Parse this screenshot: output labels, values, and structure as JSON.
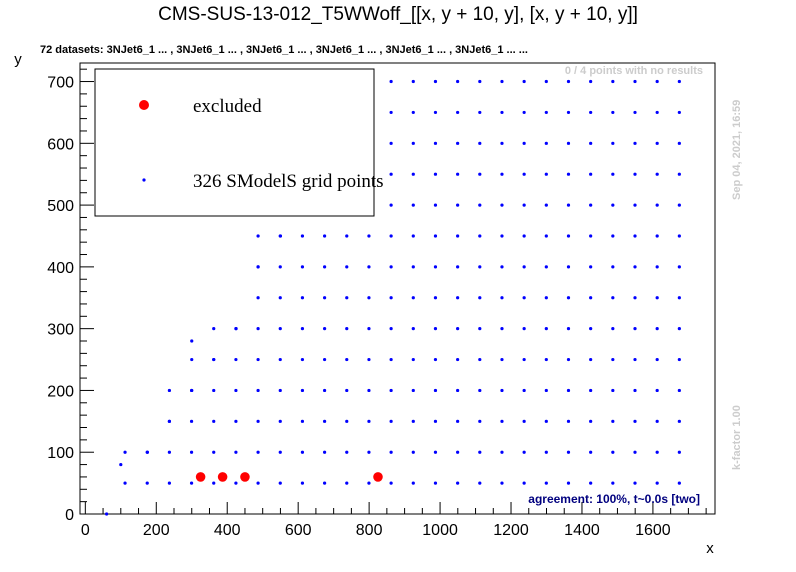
{
  "chart_data": {
    "type": "scatter",
    "title": "CMS-SUS-13-012_T5WWoff_[[x, y + 10, y], [x, y + 10, y]]",
    "subtitle": "72 datasets: 3NJet6_1 ... , 3NJet6_1 ... , 3NJet6_1 ... , 3NJet6_1 ... , 3NJet6_1 ... , 3NJet6_1 ... ...",
    "xlabel": "x",
    "ylabel": "y",
    "xlim": [
      -15,
      1775
    ],
    "ylim": [
      0,
      730
    ],
    "xticks": [
      0,
      200,
      400,
      600,
      800,
      1000,
      1200,
      1400,
      1600
    ],
    "yticks": [
      0,
      100,
      200,
      300,
      400,
      500,
      600,
      700
    ],
    "no_results_text": "0 / 4 points with no results",
    "date_text": "Sep 04, 2021, 16:59",
    "kfactor_text": "k-factor 1.00",
    "agreement_text": "agreement: 100%, t~0.0s [two]",
    "legend_position": "top-left",
    "series": [
      {
        "name": "excluded",
        "color": "#ff0000",
        "points": [
          [
            325,
            60
          ],
          [
            387,
            60
          ],
          [
            450,
            60
          ],
          [
            825,
            60
          ]
        ]
      },
      {
        "name": "326 SModelS grid points",
        "color": "#0000ff",
        "grid": {
          "x_start": 112,
          "x_step": 62.5,
          "x_end": 1687,
          "rows": [
            {
              "y": 50,
              "x_min": 112
            },
            {
              "y": 100,
              "x_min": 112
            },
            {
              "y": 150,
              "x_min": 175
            },
            {
              "y": 200,
              "x_min": 237
            },
            {
              "y": 250,
              "x_min": 300
            },
            {
              "y": 300,
              "x_min": 362
            },
            {
              "y": 350,
              "x_min": 425
            },
            {
              "y": 400,
              "x_min": 425
            },
            {
              "y": 450,
              "x_min": 487
            },
            {
              "y": 500,
              "x_min": 550
            },
            {
              "y": 550,
              "x_min": 612
            },
            {
              "y": 600,
              "x_min": 675
            },
            {
              "y": 650,
              "x_min": 737
            },
            {
              "y": 700,
              "x_min": 737
            }
          ]
        },
        "extra_points": [
          [
            60,
            0
          ],
          [
            100,
            80
          ],
          [
            300,
            280
          ],
          [
            300,
            250
          ],
          [
            300,
            200
          ],
          [
            175,
            100
          ],
          [
            237,
            150
          ],
          [
            362,
            250
          ],
          [
            425,
            300
          ],
          [
            487,
            400
          ],
          [
            550,
            450
          ],
          [
            612,
            500
          ],
          [
            675,
            550
          ],
          [
            700,
            600
          ],
          [
            700,
            650
          ],
          [
            687,
            660
          ],
          [
            725,
            700
          ]
        ],
        "faded_points": [
          [
            725,
            700
          ],
          [
            687,
            660
          ],
          [
            800,
            690
          ]
        ]
      }
    ]
  }
}
